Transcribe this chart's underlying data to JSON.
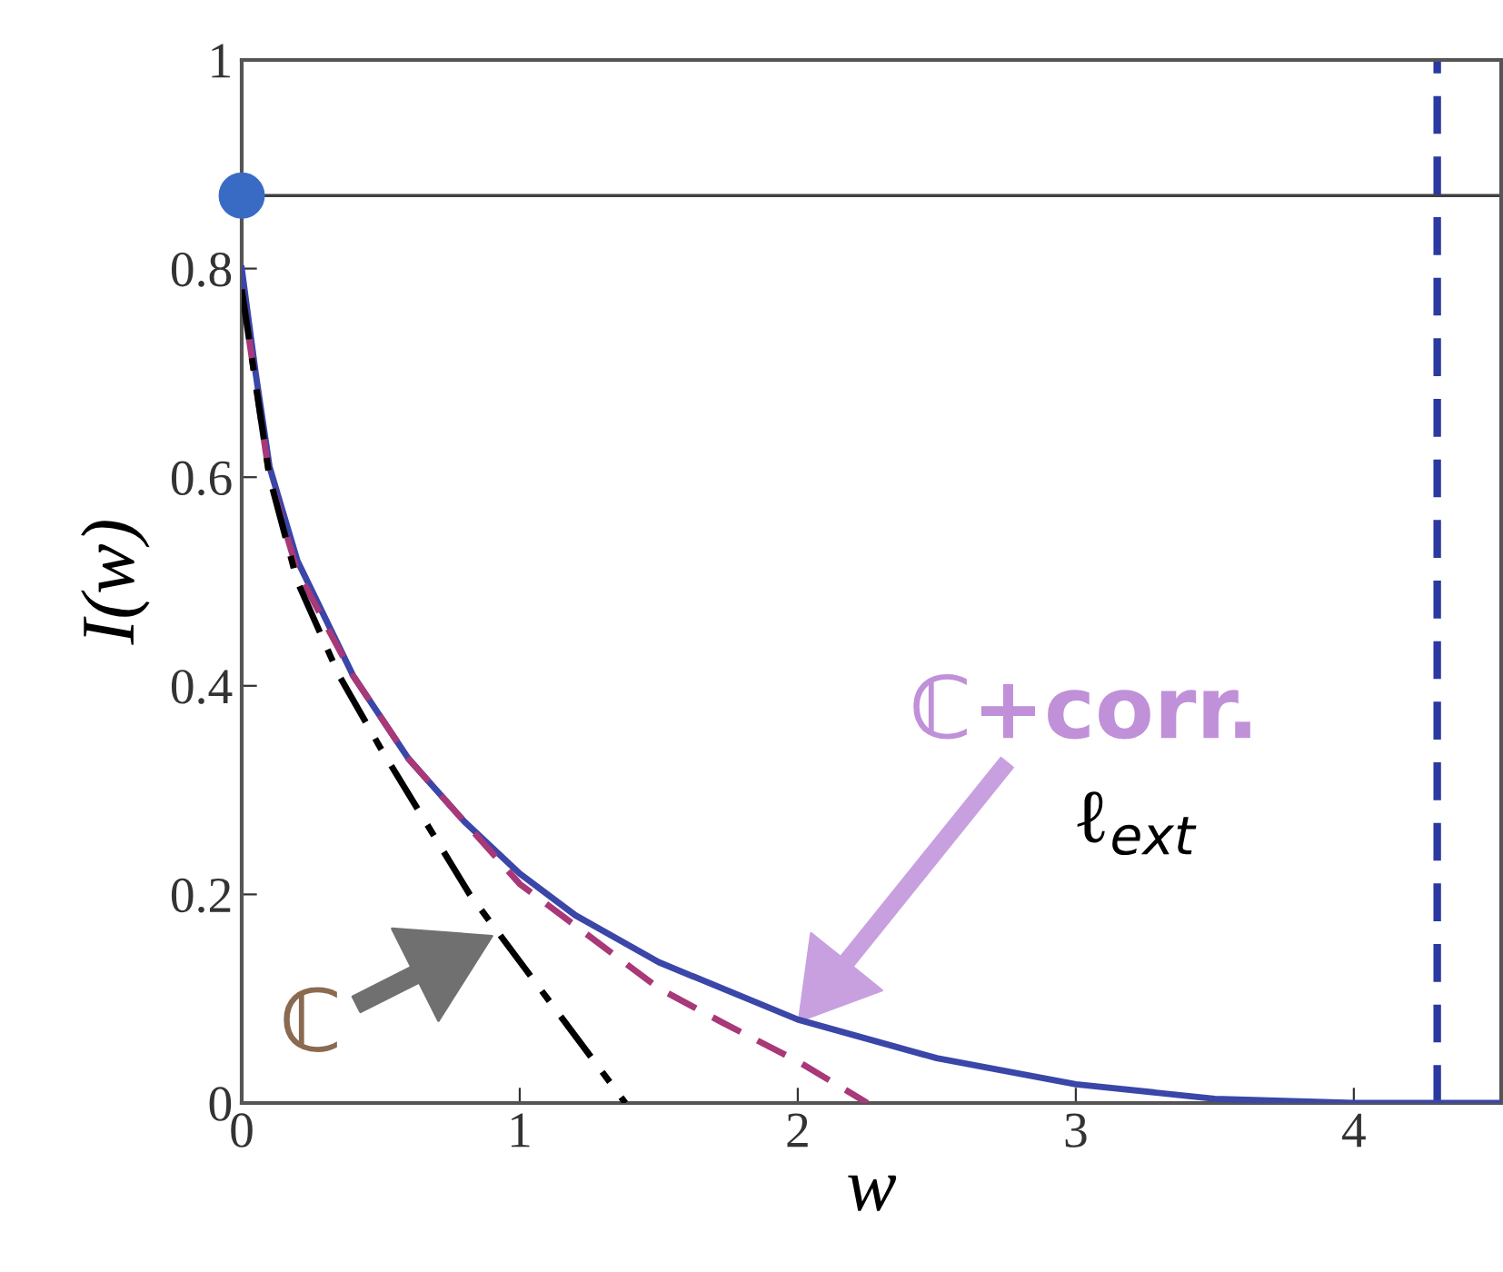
{
  "chart_data": {
    "type": "line",
    "xlabel": "w",
    "ylabel": "I(w)",
    "xlim": [
      0,
      4.53
    ],
    "ylim": [
      0,
      1
    ],
    "xticks": [
      0,
      1,
      2,
      3,
      4
    ],
    "yticks": [
      0,
      0.2,
      0.4,
      0.6,
      0.8,
      1
    ],
    "grid": false,
    "series": [
      {
        "color": "#3a46a8",
        "line_style": "solid",
        "x": [
          0,
          0.05,
          0.1,
          0.2,
          0.4,
          0.6,
          0.8,
          1.0,
          1.2,
          1.5,
          2.0,
          2.5,
          3.0,
          3.5,
          4.0,
          4.53
        ],
        "values": [
          0.8,
          0.7,
          0.61,
          0.52,
          0.41,
          0.33,
          0.27,
          0.22,
          0.18,
          0.135,
          0.08,
          0.043,
          0.018,
          0.004,
          0,
          0
        ]
      },
      {
        "color": "#a83878",
        "line_style": "dashed",
        "x": [
          0,
          0.1,
          0.2,
          0.4,
          0.6,
          0.8,
          1.0,
          1.2,
          1.5,
          1.73,
          2.0,
          2.25
        ],
        "values": [
          0.78,
          0.6,
          0.51,
          0.41,
          0.33,
          0.27,
          0.21,
          0.17,
          0.11,
          0.077,
          0.04,
          0
        ]
      },
      {
        "color": "#000000",
        "line_style": "dashdot",
        "x": [
          0,
          0.1,
          0.2,
          0.35,
          0.5,
          0.82,
          1.1,
          1.38
        ],
        "values": [
          0.78,
          0.6,
          0.5,
          0.41,
          0.34,
          0.2,
          0.1,
          0
        ]
      },
      {
        "type": "scatter",
        "color": "#3a6bc4",
        "marker": "circle",
        "x": [
          0
        ],
        "values": [
          0.87
        ]
      }
    ],
    "ref_lines": [
      {
        "axis": "y",
        "value": 0.87,
        "color": "#404040",
        "line_style": "solid"
      },
      {
        "axis": "x",
        "value": 4.3,
        "color": "#2a3aa0",
        "line_style": "dashed"
      }
    ],
    "annotations": [
      {
        "text": "ℂ",
        "x": 0.9,
        "y": 0.16
      },
      "ℂ+corr.",
      "ℓ$_{ext}$"
    ]
  }
}
